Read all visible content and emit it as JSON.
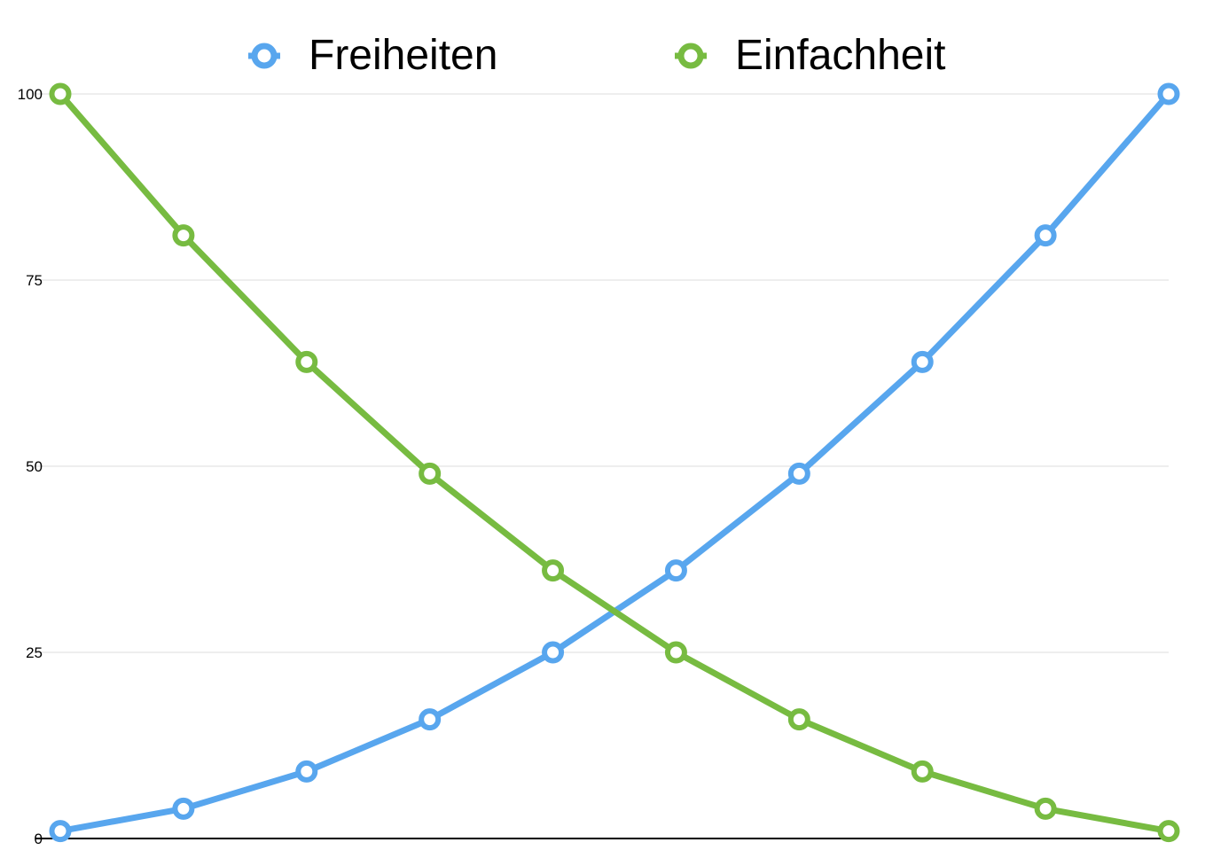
{
  "chart_data": {
    "type": "line",
    "title": "",
    "xlabel": "",
    "ylabel": "",
    "x": [
      1,
      2,
      3,
      4,
      5,
      6,
      7,
      8,
      9,
      10
    ],
    "ylim": [
      0,
      100
    ],
    "yticks": [
      "0",
      "25",
      "50",
      "75",
      "100"
    ],
    "ytick_values": [
      0,
      25,
      50,
      75,
      100
    ],
    "grid": true,
    "legend_position": "top-center",
    "series": [
      {
        "name": "Freiheiten",
        "color": "#58a6ee",
        "values": [
          1,
          4,
          9,
          16,
          25,
          36,
          49,
          64,
          81,
          100
        ]
      },
      {
        "name": "Einfachheit",
        "color": "#77bb41",
        "values": [
          100,
          81,
          64,
          49,
          36,
          25,
          16,
          9,
          4,
          1
        ]
      }
    ]
  }
}
